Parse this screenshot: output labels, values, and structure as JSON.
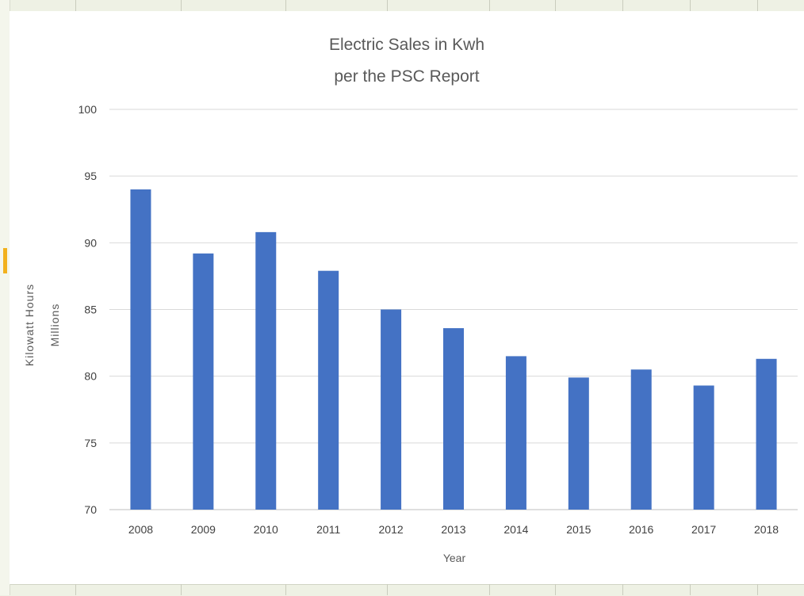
{
  "chart_data": {
    "type": "bar",
    "title": [
      "Electric Sales in Kwh",
      "per the PSC Report"
    ],
    "xlabel": "Year",
    "ylabel": "Kilowatt Hours",
    "y_units_label": "Millions",
    "categories": [
      "2008",
      "2009",
      "2010",
      "2011",
      "2012",
      "2013",
      "2014",
      "2015",
      "2016",
      "2017",
      "2018"
    ],
    "values": [
      94.0,
      89.2,
      90.8,
      87.9,
      85.0,
      83.6,
      81.5,
      79.9,
      80.5,
      79.3,
      81.3
    ],
    "ylim": [
      70,
      100
    ],
    "yticks": [
      "70",
      "75",
      "80",
      "85",
      "90",
      "95",
      "100"
    ],
    "grid": true,
    "legend": "none",
    "bar_color": "#4472C4",
    "gridline_color": "#d9d9d9"
  }
}
